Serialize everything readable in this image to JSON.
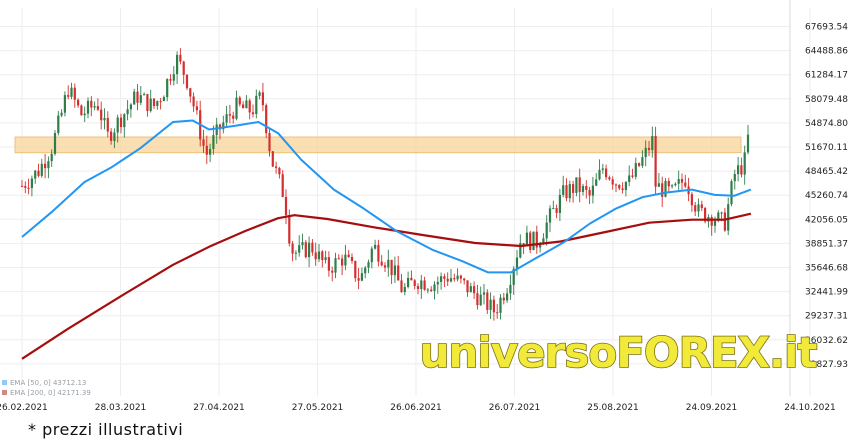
{
  "chart_data": {
    "type": "candlestick",
    "y_ticks": [
      "67693.54",
      "64488.86",
      "61284.17",
      "58079.48",
      "54874.80",
      "51670.11",
      "48465.42",
      "45260.74",
      "42056.05",
      "38851.37",
      "35646.68",
      "32441.99",
      "29237.31",
      "26032.62",
      "22827.93"
    ],
    "y_tick_values": [
      67693.54,
      64488.86,
      61284.17,
      58079.48,
      54874.8,
      51670.11,
      48465.42,
      45260.74,
      42056.05,
      38851.37,
      35646.68,
      32441.99,
      29237.31,
      26032.62,
      22827.93
    ],
    "x_ticks": [
      "26.02.2021",
      "28.03.2021",
      "27.04.2021",
      "27.05.2021",
      "26.06.2021",
      "26.07.2021",
      "25.08.2021",
      "24.09.2021",
      "24.10.2021"
    ],
    "x_range": [
      "2021-02-26",
      "2021-10-24"
    ],
    "ylim": [
      22827.93,
      69300
    ],
    "grid": true,
    "zone": {
      "low": 50900,
      "high": 53000,
      "color": "#f8d49a"
    },
    "colors": {
      "up": "#2e7d4a",
      "down": "#d32f2f",
      "ema_fast": "#2196f3",
      "ema_slow": "#a50e0e"
    },
    "close": [
      {
        "date": "2021-02-26",
        "value": 46500
      },
      {
        "date": "2021-03-03",
        "value": 48500
      },
      {
        "date": "2021-03-07",
        "value": 51500
      },
      {
        "date": "2021-03-10",
        "value": 56000
      },
      {
        "date": "2021-03-12",
        "value": 59500
      },
      {
        "date": "2021-03-16",
        "value": 56000
      },
      {
        "date": "2021-03-21",
        "value": 57500
      },
      {
        "date": "2021-03-24",
        "value": 53000
      },
      {
        "date": "2021-03-28",
        "value": 55500
      },
      {
        "date": "2021-04-02",
        "value": 58500
      },
      {
        "date": "2021-04-07",
        "value": 57000
      },
      {
        "date": "2021-04-10",
        "value": 59000
      },
      {
        "date": "2021-04-14",
        "value": 63500
      },
      {
        "date": "2021-04-17",
        "value": 61000
      },
      {
        "date": "2021-04-20",
        "value": 56000
      },
      {
        "date": "2021-04-23",
        "value": 50500
      },
      {
        "date": "2021-04-27",
        "value": 54000
      },
      {
        "date": "2021-05-02",
        "value": 57000
      },
      {
        "date": "2021-05-07",
        "value": 56500
      },
      {
        "date": "2021-05-10",
        "value": 58500
      },
      {
        "date": "2021-05-13",
        "value": 50000
      },
      {
        "date": "2021-05-17",
        "value": 45000
      },
      {
        "date": "2021-05-19",
        "value": 38000
      },
      {
        "date": "2021-05-21",
        "value": 37500
      },
      {
        "date": "2021-05-25",
        "value": 38500
      },
      {
        "date": "2021-05-30",
        "value": 35500
      },
      {
        "date": "2021-06-04",
        "value": 37000
      },
      {
        "date": "2021-06-09",
        "value": 34000
      },
      {
        "date": "2021-06-13",
        "value": 38500
      },
      {
        "date": "2021-06-18",
        "value": 36000
      },
      {
        "date": "2021-06-22",
        "value": 32500
      },
      {
        "date": "2021-06-26",
        "value": 34000
      },
      {
        "date": "2021-07-01",
        "value": 33500
      },
      {
        "date": "2021-07-06",
        "value": 34500
      },
      {
        "date": "2021-07-10",
        "value": 33500
      },
      {
        "date": "2021-07-15",
        "value": 31800
      },
      {
        "date": "2021-07-20",
        "value": 29800
      },
      {
        "date": "2021-07-24",
        "value": 33500
      },
      {
        "date": "2021-07-28",
        "value": 39500
      },
      {
        "date": "2021-08-02",
        "value": 39000
      },
      {
        "date": "2021-08-06",
        "value": 42500
      },
      {
        "date": "2021-08-10",
        "value": 45500
      },
      {
        "date": "2021-08-14",
        "value": 46500
      },
      {
        "date": "2021-08-18",
        "value": 45000
      },
      {
        "date": "2021-08-22",
        "value": 49000
      },
      {
        "date": "2021-08-26",
        "value": 47000
      },
      {
        "date": "2021-08-30",
        "value": 47000
      },
      {
        "date": "2021-09-03",
        "value": 50000
      },
      {
        "date": "2021-09-06",
        "value": 52500
      },
      {
        "date": "2021-09-07",
        "value": 46500
      },
      {
        "date": "2021-09-12",
        "value": 45500
      },
      {
        "date": "2021-09-16",
        "value": 47500
      },
      {
        "date": "2021-09-20",
        "value": 43000
      },
      {
        "date": "2021-09-24",
        "value": 42500
      },
      {
        "date": "2021-09-28",
        "value": 41500
      },
      {
        "date": "2021-10-01",
        "value": 48000
      },
      {
        "date": "2021-10-04",
        "value": 49500
      },
      {
        "date": "2021-10-06",
        "value": 55500
      }
    ],
    "ema_fast": [
      {
        "date": "2021-02-26",
        "value": 39700
      },
      {
        "date": "2021-03-07",
        "value": 43000
      },
      {
        "date": "2021-03-17",
        "value": 47000
      },
      {
        "date": "2021-03-25",
        "value": 48900
      },
      {
        "date": "2021-04-03",
        "value": 51500
      },
      {
        "date": "2021-04-13",
        "value": 55000
      },
      {
        "date": "2021-04-19",
        "value": 55200
      },
      {
        "date": "2021-04-24",
        "value": 54000
      },
      {
        "date": "2021-05-02",
        "value": 54500
      },
      {
        "date": "2021-05-09",
        "value": 55000
      },
      {
        "date": "2021-05-15",
        "value": 53500
      },
      {
        "date": "2021-05-22",
        "value": 50000
      },
      {
        "date": "2021-06-01",
        "value": 46000
      },
      {
        "date": "2021-06-10",
        "value": 43500
      },
      {
        "date": "2021-06-20",
        "value": 40500
      },
      {
        "date": "2021-07-01",
        "value": 38000
      },
      {
        "date": "2021-07-10",
        "value": 36500
      },
      {
        "date": "2021-07-18",
        "value": 35000
      },
      {
        "date": "2021-07-25",
        "value": 35000
      },
      {
        "date": "2021-08-02",
        "value": 37000
      },
      {
        "date": "2021-08-10",
        "value": 39000
      },
      {
        "date": "2021-08-18",
        "value": 41500
      },
      {
        "date": "2021-08-26",
        "value": 43500
      },
      {
        "date": "2021-09-03",
        "value": 45000
      },
      {
        "date": "2021-09-10",
        "value": 45600
      },
      {
        "date": "2021-09-18",
        "value": 46000
      },
      {
        "date": "2021-09-25",
        "value": 45300
      },
      {
        "date": "2021-10-01",
        "value": 45200
      },
      {
        "date": "2021-10-06",
        "value": 46000
      }
    ],
    "ema_slow": [
      {
        "date": "2021-02-26",
        "value": 23500
      },
      {
        "date": "2021-03-12",
        "value": 27500
      },
      {
        "date": "2021-03-28",
        "value": 31800
      },
      {
        "date": "2021-04-13",
        "value": 36000
      },
      {
        "date": "2021-04-24",
        "value": 38400
      },
      {
        "date": "2021-05-05",
        "value": 40500
      },
      {
        "date": "2021-05-15",
        "value": 42200
      },
      {
        "date": "2021-05-20",
        "value": 42600
      },
      {
        "date": "2021-05-30",
        "value": 42100
      },
      {
        "date": "2021-06-13",
        "value": 41000
      },
      {
        "date": "2021-06-29",
        "value": 39900
      },
      {
        "date": "2021-07-14",
        "value": 38900
      },
      {
        "date": "2021-07-28",
        "value": 38500
      },
      {
        "date": "2021-08-09",
        "value": 39100
      },
      {
        "date": "2021-08-22",
        "value": 40300
      },
      {
        "date": "2021-09-05",
        "value": 41600
      },
      {
        "date": "2021-09-18",
        "value": 42000
      },
      {
        "date": "2021-09-28",
        "value": 42000
      },
      {
        "date": "2021-10-06",
        "value": 42800
      }
    ],
    "legend": [
      {
        "label": "EMA [50, 0] 43712.13",
        "color": "#2196f3"
      },
      {
        "label": "EMA [200, 0] 42171.39",
        "color": "#a50e0e"
      }
    ]
  },
  "watermark": "universoFOREX.it",
  "note": "* prezzi illustrativi"
}
